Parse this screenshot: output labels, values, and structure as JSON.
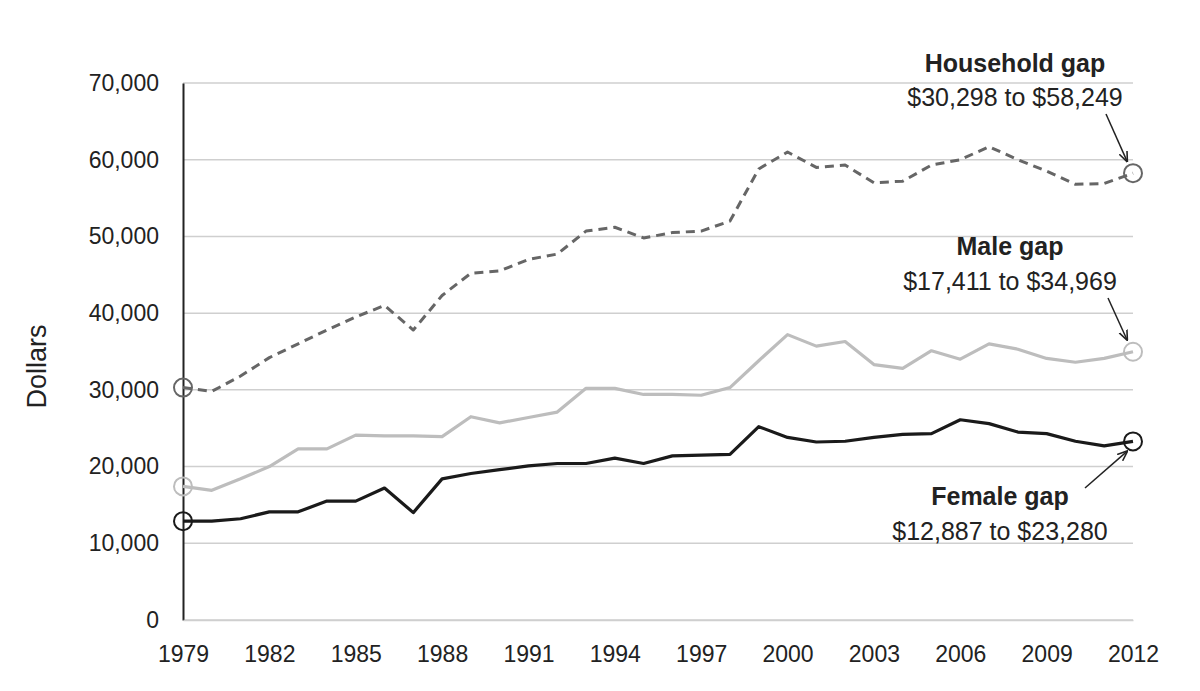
{
  "chart_data": {
    "type": "line",
    "y_label": "Dollars",
    "x": [
      1979,
      1980,
      1981,
      1982,
      1983,
      1984,
      1985,
      1986,
      1987,
      1988,
      1989,
      1990,
      1991,
      1992,
      1993,
      1994,
      1995,
      1996,
      1997,
      1998,
      1999,
      2000,
      2001,
      2002,
      2003,
      2004,
      2005,
      2006,
      2007,
      2008,
      2009,
      2010,
      2011,
      2012
    ],
    "xlim": [
      1979,
      2012
    ],
    "xticks": [
      1979,
      1982,
      1985,
      1988,
      1991,
      1994,
      1997,
      2000,
      2003,
      2006,
      2009,
      2012
    ],
    "ylim": [
      0,
      70000
    ],
    "yticks": [
      0,
      {
        "value": 10000,
        "label": "10,000"
      },
      {
        "value": 20000,
        "label": "20,000"
      },
      {
        "value": 30000,
        "label": "30,000"
      },
      {
        "value": 40000,
        "label": "40,000"
      },
      {
        "value": 50000,
        "label": "50,000"
      },
      {
        "value": 60000,
        "label": "60,000"
      },
      {
        "value": 70000,
        "label": "70,000"
      }
    ],
    "grid": true,
    "series": [
      {
        "name": "Household gap",
        "color": "#666666",
        "line_style": "dashed",
        "values": [
          30298,
          29800,
          31800,
          34200,
          36000,
          37800,
          39500,
          41000,
          37800,
          42300,
          45200,
          45500,
          47000,
          47700,
          50700,
          51200,
          49800,
          50500,
          50700,
          52000,
          58800,
          61000,
          59000,
          59300,
          57000,
          57200,
          59300,
          60000,
          61700,
          60000,
          58500,
          56800,
          56900,
          58249
        ]
      },
      {
        "name": "Male gap",
        "color": "#bdbdbd",
        "line_style": "solid",
        "values": [
          17411,
          16900,
          18400,
          20000,
          22300,
          22300,
          24100,
          24000,
          24000,
          23900,
          26500,
          25700,
          26400,
          27100,
          30200,
          30200,
          29400,
          29400,
          29300,
          30300,
          33800,
          37200,
          35700,
          36300,
          33300,
          32800,
          35100,
          34000,
          36000,
          35300,
          34100,
          33600,
          34100,
          34969
        ]
      },
      {
        "name": "Female gap",
        "color": "#1a1a1a",
        "line_style": "solid",
        "values": [
          12887,
          12900,
          13200,
          14100,
          14100,
          15500,
          15500,
          17200,
          14000,
          18400,
          19100,
          19600,
          20100,
          20400,
          20400,
          21100,
          20400,
          21400,
          21500,
          21600,
          25200,
          23800,
          23200,
          23300,
          23800,
          24200,
          24300,
          26100,
          25600,
          24500,
          24300,
          23300,
          22700,
          23280
        ]
      }
    ],
    "annotations": [
      "$30,298 to $58,249",
      "$17,411 to $34,969",
      "$12,887 to $23,280"
    ]
  }
}
